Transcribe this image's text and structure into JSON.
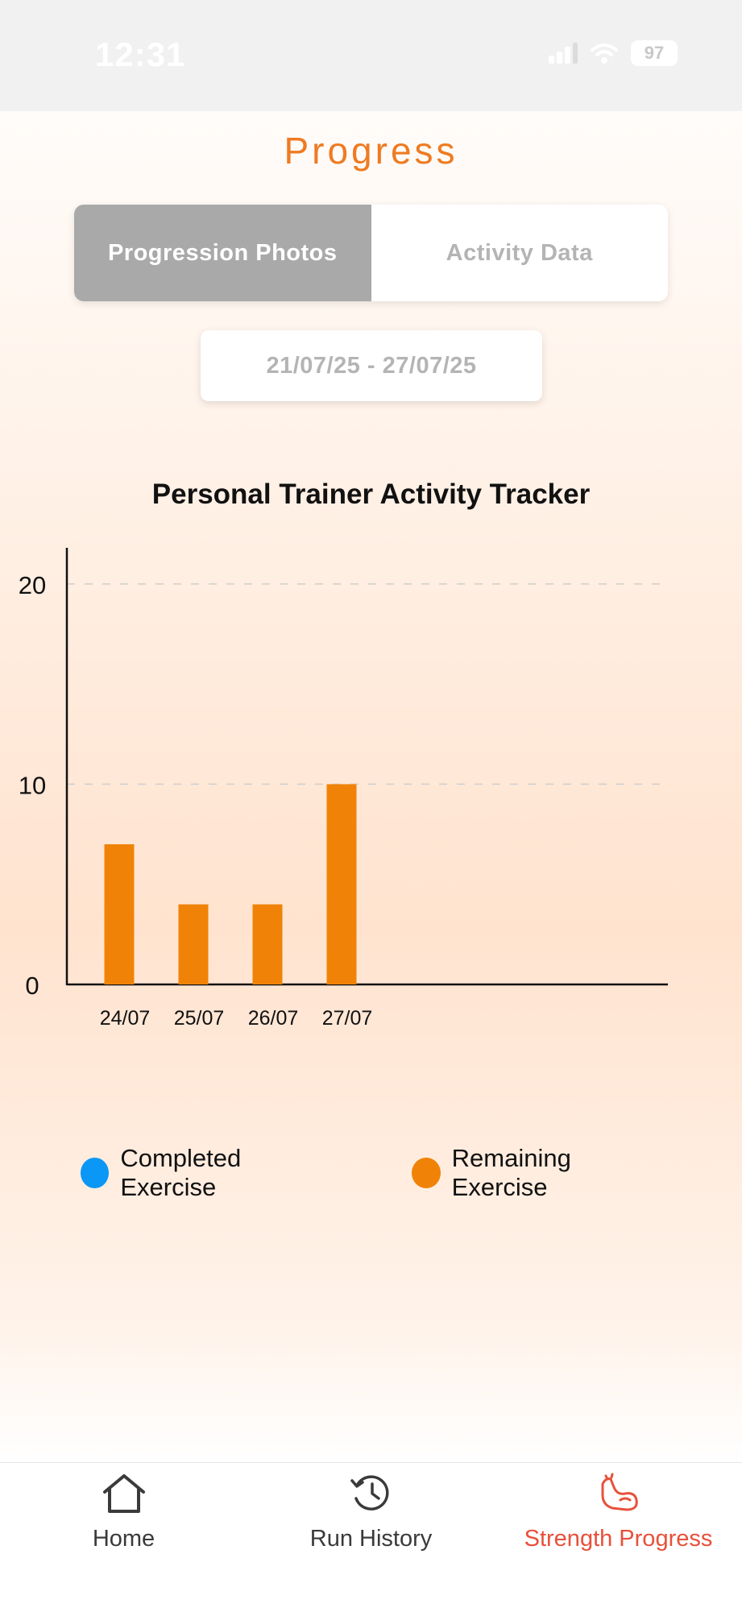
{
  "status_bar": {
    "time": "12:31",
    "battery": "97",
    "icons": [
      "signal-icon",
      "wifi-icon",
      "battery-icon"
    ]
  },
  "header": {
    "title": "Progress"
  },
  "segments": [
    {
      "label": "Progression Photos",
      "active": true
    },
    {
      "label": "Activity Data",
      "active": false
    }
  ],
  "date_range": "21/07/25 - 27/07/25",
  "chart_data": {
    "type": "bar",
    "title": "Personal Trainer Activity Tracker",
    "categories": [
      "24/07",
      "25/07",
      "26/07",
      "27/07"
    ],
    "series": [
      {
        "name": "Completed Exercise",
        "color": "#0a97f5",
        "values": [
          0,
          0,
          0,
          0
        ]
      },
      {
        "name": "Remaining Exercise",
        "color": "#f08307",
        "values": [
          7,
          4,
          4,
          10
        ]
      }
    ],
    "y_ticks": [
      "0",
      "10",
      "20"
    ],
    "ylim": [
      0,
      21
    ],
    "grid": "dashed horizontal",
    "legend_position": "bottom"
  },
  "tab_bar": {
    "items": [
      {
        "label": "Home",
        "icon": "home-icon",
        "active": false
      },
      {
        "label": "Run History",
        "icon": "history-icon",
        "active": false
      },
      {
        "label": "Strength Progress",
        "icon": "flexed-arm-icon",
        "active": true
      }
    ]
  },
  "colors": {
    "accent": "#ee7b22",
    "active_tab": "#e8503a",
    "bar": "#f08307",
    "completed": "#0a97f5"
  }
}
